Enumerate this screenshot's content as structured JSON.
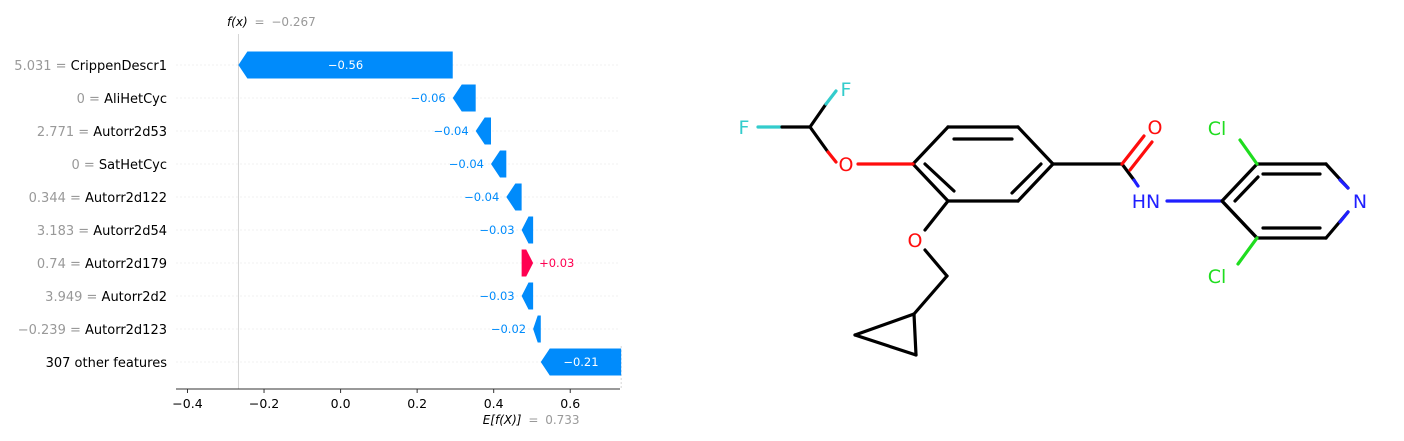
{
  "chart_data": {
    "type": "waterfall",
    "fx_label": "f(x)",
    "fx_value": "−0.267",
    "base_value": 0.733,
    "final_value": -0.267,
    "ex_label": "E[f(X)]",
    "ex_value": "0.733",
    "xlim": [
      -0.43,
      0.73
    ],
    "xticks": [
      -0.4,
      -0.2,
      0.0,
      0.2,
      0.4,
      0.6
    ],
    "xtick_labels": [
      "−0.4",
      "−0.2",
      "0.0",
      "0.2",
      "0.4",
      "0.6"
    ],
    "features": [
      {
        "value": "5.031",
        "name": "CrippenDescr1",
        "shap": -0.56,
        "label": "−0.56"
      },
      {
        "value": "0",
        "name": "AliHetCyc",
        "shap": -0.06,
        "label": "−0.06"
      },
      {
        "value": "2.771",
        "name": "Autorr2d53",
        "shap": -0.04,
        "label": "−0.04"
      },
      {
        "value": "0",
        "name": "SatHetCyc",
        "shap": -0.04,
        "label": "−0.04"
      },
      {
        "value": "0.344",
        "name": "Autorr2d122",
        "shap": -0.04,
        "label": "−0.04"
      },
      {
        "value": "3.183",
        "name": "Autorr2d54",
        "shap": -0.03,
        "label": "−0.03"
      },
      {
        "value": "0.74",
        "name": "Autorr2d179",
        "shap": 0.03,
        "label": "+0.03"
      },
      {
        "value": "3.949",
        "name": "Autorr2d2",
        "shap": -0.03,
        "label": "−0.03"
      },
      {
        "value": "−0.239",
        "name": "Autorr2d123",
        "shap": -0.02,
        "label": "−0.02"
      },
      {
        "value": "",
        "name": "307 other features",
        "shap": -0.21,
        "label": "−0.21"
      }
    ],
    "colors": {
      "negative": "#008bfb",
      "positive": "#ff0051",
      "muted": "#999999",
      "text": "#000000"
    }
  },
  "molecule": {
    "atoms": {
      "F1": "F",
      "F2": "F",
      "O_ether1": "O",
      "O_ether2": "O",
      "O_carbonyl": "O",
      "NH": "HN",
      "N_ring": "N",
      "Cl1": "Cl",
      "Cl2": "Cl"
    },
    "colors": {
      "F": "#33cccc",
      "O": "#ff0d0d",
      "N": "#1f1fff",
      "Cl": "#1fdd1f",
      "C": "#000000"
    }
  }
}
